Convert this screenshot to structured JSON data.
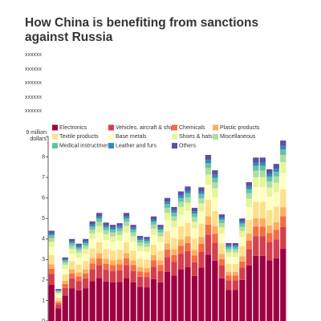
{
  "chart_data": {
    "type": "stacked_bar",
    "title": "How China is benefiting from sanctions against Russia",
    "subtitle": [
      "xxxxxx",
      "xxxxxx",
      "xxxxxx",
      "xxxxxx",
      "xxxxxx"
    ],
    "ylim": [
      0,
      9
    ],
    "yticks": [
      0,
      1,
      2,
      3,
      4,
      5,
      6,
      7,
      8,
      {
        "value": 9,
        "label": "9 million dollars"
      }
    ],
    "series": [
      {
        "name": "Electronics",
        "color": "#9e0142",
        "values": [
          1.76,
          0.62,
          1.24,
          1.6,
          1.5,
          1.6,
          1.94,
          2.1,
          1.92,
          1.88,
          1.9,
          2.1,
          1.88,
          1.66,
          1.64,
          2.04,
          1.88,
          2.4,
          2.22,
          2.52,
          2.62,
          2.2,
          2.6,
          3.24,
          2.94,
          2.08,
          1.52,
          1.52,
          2.0,
          2.7,
          3.18,
          3.18,
          2.96,
          3.06,
          3.52
        ]
      },
      {
        "name": "Vehicles, aircraft & ships",
        "color": "#d53e4f",
        "values": [
          0.53,
          0.19,
          0.37,
          0.48,
          0.45,
          0.48,
          0.58,
          0.63,
          0.58,
          0.56,
          0.57,
          0.63,
          0.56,
          0.5,
          0.49,
          0.61,
          0.56,
          0.72,
          0.67,
          0.76,
          0.79,
          0.66,
          0.78,
          0.97,
          0.88,
          0.62,
          0.46,
          0.46,
          0.6,
          0.81,
          0.95,
          0.95,
          0.89,
          0.92,
          1.06
        ]
      },
      {
        "name": "Chemicals",
        "color": "#f46d43",
        "values": [
          0.26,
          0.09,
          0.19,
          0.24,
          0.23,
          0.24,
          0.29,
          0.32,
          0.29,
          0.28,
          0.29,
          0.32,
          0.28,
          0.25,
          0.25,
          0.31,
          0.28,
          0.36,
          0.33,
          0.38,
          0.39,
          0.33,
          0.39,
          0.49,
          0.44,
          0.31,
          0.23,
          0.23,
          0.3,
          0.41,
          0.48,
          0.48,
          0.44,
          0.46,
          0.53
        ]
      },
      {
        "name": "Plastic products",
        "color": "#fdae61",
        "values": [
          0.22,
          0.08,
          0.16,
          0.2,
          0.19,
          0.2,
          0.24,
          0.26,
          0.24,
          0.24,
          0.24,
          0.26,
          0.24,
          0.21,
          0.21,
          0.26,
          0.24,
          0.3,
          0.28,
          0.32,
          0.33,
          0.28,
          0.33,
          0.41,
          0.37,
          0.26,
          0.19,
          0.19,
          0.25,
          0.34,
          0.4,
          0.4,
          0.37,
          0.38,
          0.44
        ]
      },
      {
        "name": "Textile products",
        "color": "#fee08b",
        "values": [
          0.44,
          0.16,
          0.31,
          0.4,
          0.38,
          0.4,
          0.49,
          0.53,
          0.48,
          0.47,
          0.48,
          0.53,
          0.47,
          0.42,
          0.41,
          0.51,
          0.47,
          0.6,
          0.56,
          0.63,
          0.66,
          0.55,
          0.65,
          0.81,
          0.74,
          0.52,
          0.38,
          0.38,
          0.5,
          0.68,
          0.8,
          0.8,
          0.74,
          0.77,
          0.88
        ]
      },
      {
        "name": "Base metals",
        "color": "#ffffbf",
        "values": [
          0.4,
          0.14,
          0.28,
          0.36,
          0.34,
          0.36,
          0.44,
          0.47,
          0.43,
          0.42,
          0.43,
          0.47,
          0.42,
          0.37,
          0.37,
          0.46,
          0.42,
          0.54,
          0.5,
          0.57,
          0.59,
          0.5,
          0.59,
          0.73,
          0.66,
          0.47,
          0.34,
          0.34,
          0.45,
          0.61,
          0.72,
          0.72,
          0.67,
          0.69,
          0.79
        ]
      },
      {
        "name": "Shoes & hats",
        "color": "#e6f598",
        "values": [
          0.26,
          0.09,
          0.19,
          0.24,
          0.23,
          0.24,
          0.29,
          0.32,
          0.29,
          0.28,
          0.29,
          0.32,
          0.28,
          0.25,
          0.25,
          0.31,
          0.28,
          0.36,
          0.33,
          0.38,
          0.39,
          0.33,
          0.39,
          0.49,
          0.44,
          0.31,
          0.23,
          0.23,
          0.3,
          0.41,
          0.48,
          0.48,
          0.44,
          0.46,
          0.53
        ]
      },
      {
        "name": "Miscellaneous",
        "color": "#abdda4",
        "values": [
          0.18,
          0.06,
          0.12,
          0.16,
          0.15,
          0.16,
          0.19,
          0.21,
          0.19,
          0.19,
          0.19,
          0.21,
          0.19,
          0.17,
          0.16,
          0.2,
          0.19,
          0.24,
          0.22,
          0.25,
          0.26,
          0.22,
          0.26,
          0.32,
          0.29,
          0.21,
          0.15,
          0.15,
          0.2,
          0.27,
          0.32,
          0.32,
          0.3,
          0.31,
          0.35
        ]
      },
      {
        "name": "Medical instructments",
        "color": "#66c2a5",
        "values": [
          0.13,
          0.05,
          0.09,
          0.12,
          0.11,
          0.12,
          0.15,
          0.16,
          0.14,
          0.14,
          0.14,
          0.16,
          0.14,
          0.12,
          0.12,
          0.15,
          0.14,
          0.18,
          0.17,
          0.19,
          0.2,
          0.17,
          0.2,
          0.24,
          0.22,
          0.16,
          0.11,
          0.11,
          0.15,
          0.2,
          0.24,
          0.24,
          0.22,
          0.23,
          0.26
        ]
      },
      {
        "name": "Leather and furs",
        "color": "#3288bd",
        "values": [
          0.09,
          0.03,
          0.06,
          0.08,
          0.08,
          0.08,
          0.1,
          0.11,
          0.1,
          0.09,
          0.1,
          0.11,
          0.09,
          0.08,
          0.08,
          0.1,
          0.09,
          0.12,
          0.11,
          0.13,
          0.13,
          0.11,
          0.13,
          0.16,
          0.15,
          0.1,
          0.08,
          0.08,
          0.1,
          0.14,
          0.16,
          0.16,
          0.15,
          0.15,
          0.18
        ]
      },
      {
        "name": "Others",
        "color": "#5e4fa2",
        "values": [
          0.13,
          0.05,
          0.09,
          0.12,
          0.11,
          0.12,
          0.15,
          0.16,
          0.14,
          0.14,
          0.14,
          0.16,
          0.14,
          0.12,
          0.12,
          0.15,
          0.14,
          0.18,
          0.17,
          0.19,
          0.2,
          0.17,
          0.2,
          0.24,
          0.22,
          0.16,
          0.11,
          0.11,
          0.15,
          0.2,
          0.24,
          0.24,
          0.22,
          0.23,
          0.26
        ]
      }
    ]
  }
}
